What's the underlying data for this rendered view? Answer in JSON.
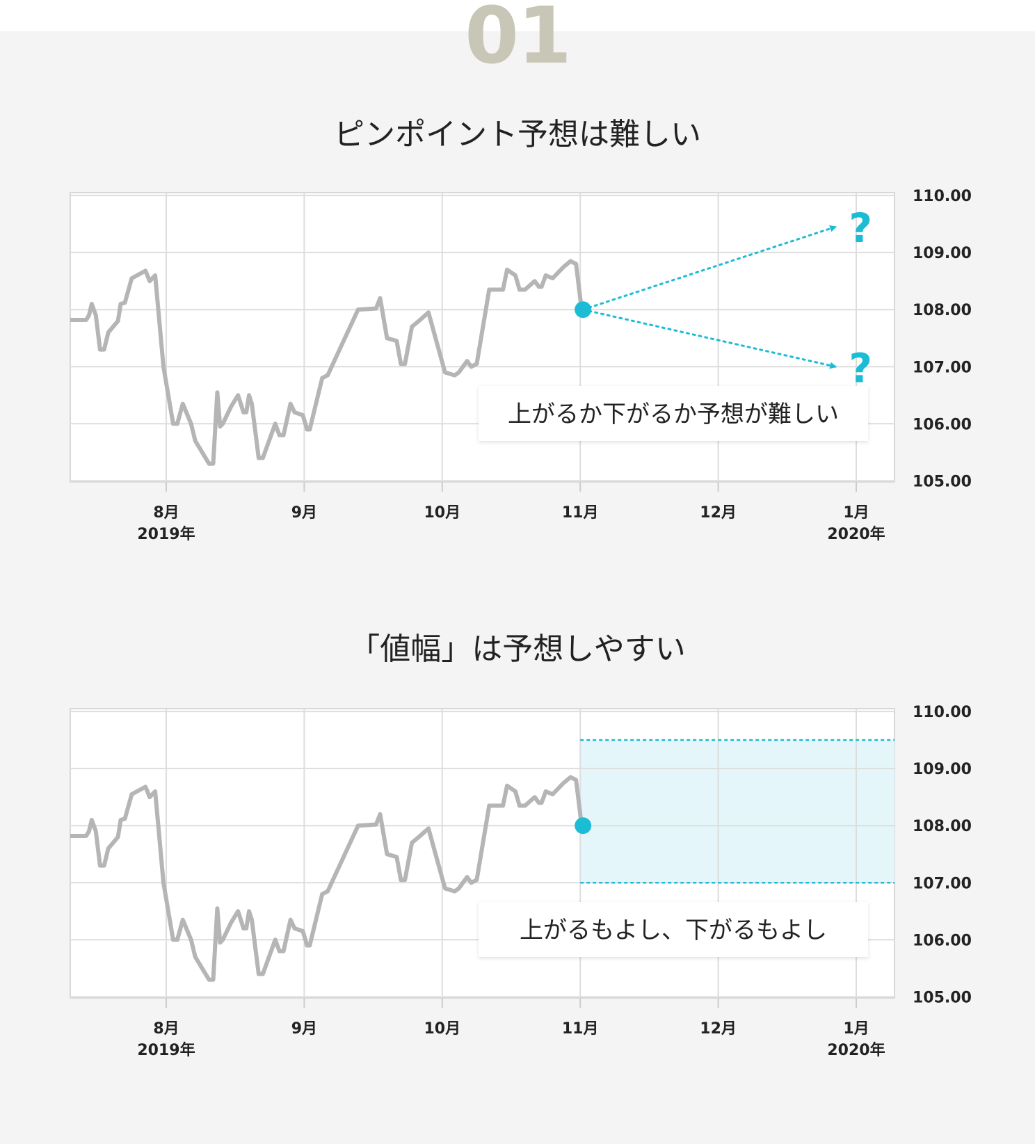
{
  "header": {
    "step_number": "01"
  },
  "colors": {
    "accent": "#1bbcd4",
    "band_fill": "#e4f6fa",
    "line": "#b5b5b5",
    "grid": "#dddddd",
    "background": "#f4f4f4"
  },
  "sections": [
    {
      "title": "ピンポイント予想は難しい",
      "callout": "上がるか下がるか予想が難しい",
      "question_mark": "?"
    },
    {
      "title": "「値幅」は予想しやすい",
      "callout": "上がるもよし、下がるもよし"
    }
  ],
  "chart_data": [
    {
      "type": "line",
      "title": "ピンポイント予想は難しい",
      "x_tick_labels": [
        {
          "month": "8月",
          "year": "2019年"
        },
        {
          "month": "9月",
          "year": ""
        },
        {
          "month": "10月",
          "year": ""
        },
        {
          "month": "11月",
          "year": ""
        },
        {
          "month": "12月",
          "year": ""
        },
        {
          "month": "1月",
          "year": "2020年"
        }
      ],
      "y_tick_labels": [
        "110.00",
        "109.00",
        "108.00",
        "107.00",
        "106.00",
        "105.00"
      ],
      "ylim": [
        104.98,
        110.05
      ],
      "xlim": [
        -0.7,
        5.3
      ],
      "grid": true,
      "series": [
        {
          "values": [
            [
              -0.7,
              107.82
            ],
            [
              -0.58,
              107.82
            ],
            [
              -0.56,
              107.9
            ],
            [
              -0.54,
              108.1
            ],
            [
              -0.51,
              107.9
            ],
            [
              -0.48,
              107.3
            ],
            [
              -0.45,
              107.3
            ],
            [
              -0.42,
              107.6
            ],
            [
              -0.35,
              107.8
            ],
            [
              -0.33,
              108.1
            ],
            [
              -0.3,
              108.12
            ],
            [
              -0.25,
              108.55
            ],
            [
              -0.15,
              108.68
            ],
            [
              -0.12,
              108.5
            ],
            [
              -0.08,
              108.6
            ],
            [
              -0.02,
              107.0
            ],
            [
              0.05,
              106.0
            ],
            [
              0.08,
              106.0
            ],
            [
              0.12,
              106.35
            ],
            [
              0.18,
              106.0
            ],
            [
              0.21,
              105.7
            ],
            [
              0.31,
              105.3
            ],
            [
              0.34,
              105.3
            ],
            [
              0.37,
              106.55
            ],
            [
              0.39,
              105.95
            ],
            [
              0.41,
              106.0
            ],
            [
              0.47,
              106.3
            ],
            [
              0.52,
              106.5
            ],
            [
              0.56,
              106.2
            ],
            [
              0.58,
              106.2
            ],
            [
              0.6,
              106.5
            ],
            [
              0.62,
              106.35
            ],
            [
              0.67,
              105.4
            ],
            [
              0.7,
              105.4
            ],
            [
              0.79,
              106.0
            ],
            [
              0.82,
              105.8
            ],
            [
              0.85,
              105.8
            ],
            [
              0.9,
              106.35
            ],
            [
              0.93,
              106.2
            ],
            [
              0.99,
              106.15
            ],
            [
              1.02,
              105.9
            ],
            [
              1.04,
              105.9
            ],
            [
              1.13,
              106.8
            ],
            [
              1.17,
              106.85
            ],
            [
              1.39,
              108.0
            ],
            [
              1.52,
              108.02
            ],
            [
              1.55,
              108.2
            ],
            [
              1.6,
              107.5
            ],
            [
              1.67,
              107.45
            ],
            [
              1.7,
              107.05
            ],
            [
              1.73,
              107.05
            ],
            [
              1.78,
              107.7
            ],
            [
              1.83,
              107.8
            ],
            [
              1.9,
              107.95
            ],
            [
              2.02,
              106.9
            ],
            [
              2.09,
              106.85
            ],
            [
              2.12,
              106.9
            ],
            [
              2.18,
              107.1
            ],
            [
              2.21,
              107.0
            ],
            [
              2.25,
              107.05
            ],
            [
              2.34,
              108.35
            ],
            [
              2.44,
              108.35
            ],
            [
              2.47,
              108.7
            ],
            [
              2.53,
              108.6
            ],
            [
              2.56,
              108.35
            ],
            [
              2.6,
              108.35
            ],
            [
              2.67,
              108.5
            ],
            [
              2.7,
              108.4
            ],
            [
              2.72,
              108.4
            ],
            [
              2.75,
              108.6
            ],
            [
              2.8,
              108.55
            ],
            [
              2.88,
              108.75
            ],
            [
              2.93,
              108.85
            ],
            [
              2.97,
              108.8
            ],
            [
              3.01,
              108.0
            ],
            [
              3.02,
              108.0
            ]
          ]
        }
      ],
      "annotations": {
        "marker": [
          3.02,
          108.0
        ],
        "arrows": [
          {
            "from": [
              3.02,
              108.0
            ],
            "to": [
              4.85,
              109.45
            ],
            "label": "?"
          },
          {
            "from": [
              3.02,
              108.0
            ],
            "to": [
              4.85,
              107.0
            ],
            "label": "?"
          }
        ],
        "callout": "上がるか下がるか予想が難しい"
      }
    },
    {
      "type": "line",
      "title": "「値幅」は予想しやすい",
      "x_tick_labels": [
        {
          "month": "8月",
          "year": "2019年"
        },
        {
          "month": "9月",
          "year": ""
        },
        {
          "month": "10月",
          "year": ""
        },
        {
          "month": "11月",
          "year": ""
        },
        {
          "month": "12月",
          "year": ""
        },
        {
          "month": "1月",
          "year": "2020年"
        }
      ],
      "y_tick_labels": [
        "110.00",
        "109.00",
        "108.00",
        "107.00",
        "106.00",
        "105.00"
      ],
      "ylim": [
        104.98,
        110.05
      ],
      "xlim": [
        -0.7,
        5.3
      ],
      "grid": true,
      "series": [
        {
          "values": [
            [
              -0.7,
              107.82
            ],
            [
              -0.58,
              107.82
            ],
            [
              -0.56,
              107.9
            ],
            [
              -0.54,
              108.1
            ],
            [
              -0.51,
              107.9
            ],
            [
              -0.48,
              107.3
            ],
            [
              -0.45,
              107.3
            ],
            [
              -0.42,
              107.6
            ],
            [
              -0.35,
              107.8
            ],
            [
              -0.33,
              108.1
            ],
            [
              -0.3,
              108.12
            ],
            [
              -0.25,
              108.55
            ],
            [
              -0.15,
              108.68
            ],
            [
              -0.12,
              108.5
            ],
            [
              -0.08,
              108.6
            ],
            [
              -0.02,
              107.0
            ],
            [
              0.05,
              106.0
            ],
            [
              0.08,
              106.0
            ],
            [
              0.12,
              106.35
            ],
            [
              0.18,
              106.0
            ],
            [
              0.21,
              105.7
            ],
            [
              0.31,
              105.3
            ],
            [
              0.34,
              105.3
            ],
            [
              0.37,
              106.55
            ],
            [
              0.39,
              105.95
            ],
            [
              0.41,
              106.0
            ],
            [
              0.47,
              106.3
            ],
            [
              0.52,
              106.5
            ],
            [
              0.56,
              106.2
            ],
            [
              0.58,
              106.2
            ],
            [
              0.6,
              106.5
            ],
            [
              0.62,
              106.35
            ],
            [
              0.67,
              105.4
            ],
            [
              0.7,
              105.4
            ],
            [
              0.79,
              106.0
            ],
            [
              0.82,
              105.8
            ],
            [
              0.85,
              105.8
            ],
            [
              0.9,
              106.35
            ],
            [
              0.93,
              106.2
            ],
            [
              0.99,
              106.15
            ],
            [
              1.02,
              105.9
            ],
            [
              1.04,
              105.9
            ],
            [
              1.13,
              106.8
            ],
            [
              1.17,
              106.85
            ],
            [
              1.39,
              108.0
            ],
            [
              1.52,
              108.02
            ],
            [
              1.55,
              108.2
            ],
            [
              1.6,
              107.5
            ],
            [
              1.67,
              107.45
            ],
            [
              1.7,
              107.05
            ],
            [
              1.73,
              107.05
            ],
            [
              1.78,
              107.7
            ],
            [
              1.83,
              107.8
            ],
            [
              1.9,
              107.95
            ],
            [
              2.02,
              106.9
            ],
            [
              2.09,
              106.85
            ],
            [
              2.12,
              106.9
            ],
            [
              2.18,
              107.1
            ],
            [
              2.21,
              107.0
            ],
            [
              2.25,
              107.05
            ],
            [
              2.34,
              108.35
            ],
            [
              2.44,
              108.35
            ],
            [
              2.47,
              108.7
            ],
            [
              2.53,
              108.6
            ],
            [
              2.56,
              108.35
            ],
            [
              2.6,
              108.35
            ],
            [
              2.67,
              108.5
            ],
            [
              2.7,
              108.4
            ],
            [
              2.72,
              108.4
            ],
            [
              2.75,
              108.6
            ],
            [
              2.8,
              108.55
            ],
            [
              2.88,
              108.75
            ],
            [
              2.93,
              108.85
            ],
            [
              2.97,
              108.8
            ],
            [
              3.01,
              108.0
            ],
            [
              3.02,
              108.0
            ]
          ]
        }
      ],
      "annotations": {
        "marker": [
          3.02,
          108.0
        ],
        "band": {
          "x_from": 3.0,
          "x_to": 5.3,
          "y_high": 109.5,
          "y_low": 107.0
        },
        "callout": "上がるもよし、下がるもよし"
      }
    }
  ]
}
